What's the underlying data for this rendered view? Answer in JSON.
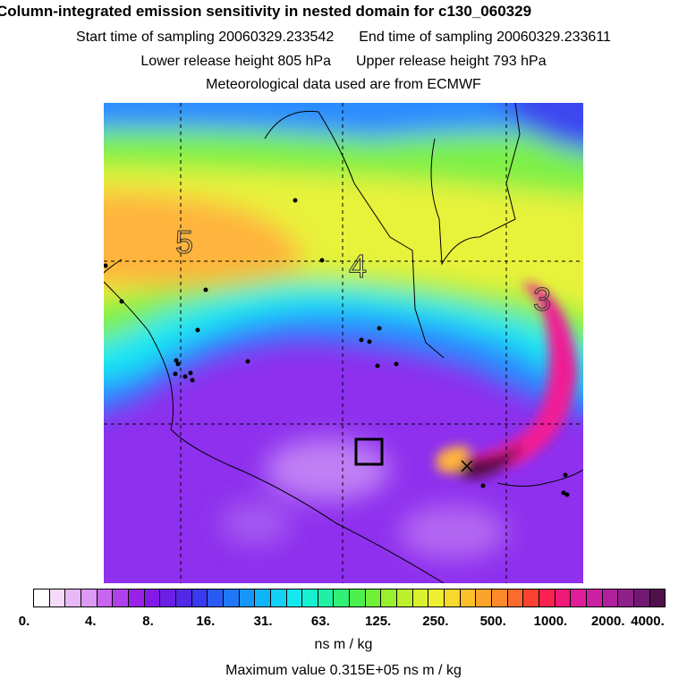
{
  "header": {
    "title": "Column-integrated emission sensitivity in nested domain for c130_060329",
    "start_label": "Start time of sampling 20060329.233542",
    "end_label": "End time of sampling 20060329.233611",
    "lower_label": "Lower release height  805 hPa",
    "upper_label": "Upper release height  793 hPa",
    "met_label": "Meteorological data used are from ECMWF"
  },
  "map": {
    "grid_labels": [
      "5",
      "4",
      "3"
    ],
    "colors": {
      "purple_low": "#8f22e8",
      "violet": "#a454f0",
      "blue": "#2a8cff",
      "cyan": "#19e6f2",
      "green": "#7df046",
      "yellow": "#e8f23a",
      "orange": "#ffb43c",
      "magenta": "#f01c96",
      "dark": "#5a0a48"
    }
  },
  "colorbar": {
    "colors": [
      "#ffffff",
      "#f4dcf8",
      "#e8b8f6",
      "#dc9af4",
      "#c864f0",
      "#b040ec",
      "#9a20ea",
      "#8418e8",
      "#6a1ee6",
      "#5228e6",
      "#3a3af0",
      "#2a5af6",
      "#1e78f8",
      "#1696fa",
      "#10b4fa",
      "#12d0f6",
      "#14e8ee",
      "#16f0d0",
      "#20f0a4",
      "#30f076",
      "#4cf04c",
      "#70f036",
      "#98f02e",
      "#bcf02c",
      "#daf22e",
      "#f0ee30",
      "#f8d82c",
      "#fcc02a",
      "#fca42a",
      "#fc8a2a",
      "#fc6a2c",
      "#fc4230",
      "#fa2050",
      "#f01878",
      "#e01c9a",
      "#cc20a4",
      "#b0209c",
      "#90208a",
      "#701872",
      "#50104c"
    ],
    "ticks": [
      "0.",
      "4.",
      "8.",
      "16.",
      "31.",
      "63.",
      "125.",
      "250.",
      "500.",
      "1000.",
      "2000.",
      "4000."
    ]
  },
  "footer": {
    "unit": "ns m / kg",
    "max_value": "Maximum value  0.315E+05 ns m / kg"
  }
}
